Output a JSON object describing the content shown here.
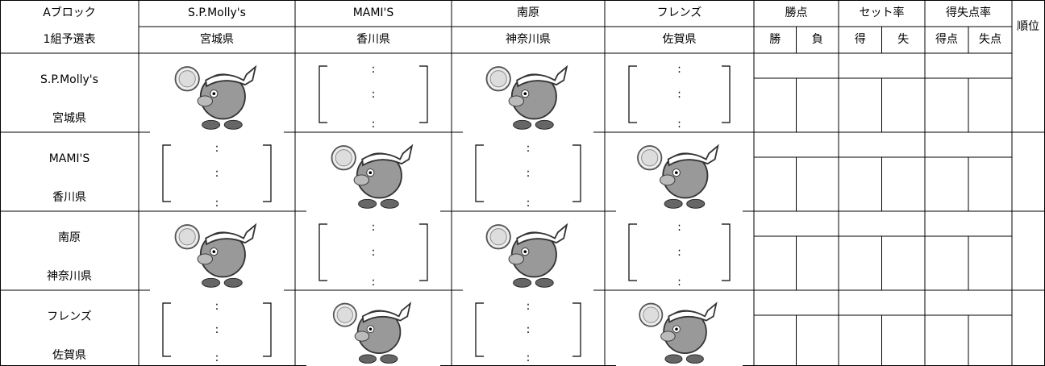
{
  "header": {
    "title_line1": "Aブロック",
    "title_line2": "1組予選表"
  },
  "teams": [
    {
      "name": "S.P.Molly's",
      "prefecture": "宮城県"
    },
    {
      "name": "MAMI'S",
      "prefecture": "香川県"
    },
    {
      "name": "南原",
      "prefecture": "神奈川県"
    },
    {
      "name": "フレンズ",
      "prefecture": "佐賀県"
    }
  ],
  "stats_headers": [
    {
      "label": "勝点",
      "sub": [
        "勝",
        "負"
      ]
    },
    {
      "label": "セット率",
      "sub": [
        "得",
        "失"
      ]
    },
    {
      "label": "得失点率",
      "sub": [
        "得点",
        "失点"
      ]
    }
  ],
  "rank_header": "順位",
  "score_separator": ":"
}
